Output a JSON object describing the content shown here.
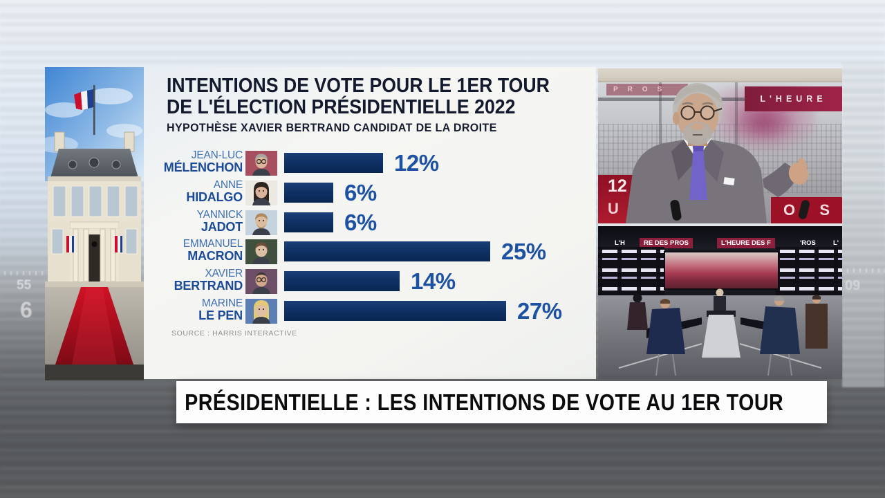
{
  "banner": {
    "headline": "PRÉSIDENTIELLE : LES INTENTIONS DE VOTE AU 1ER TOUR"
  },
  "chart_data": {
    "type": "bar",
    "orientation": "horizontal",
    "title_line1": "INTENTIONS DE VOTE POUR LE 1ER TOUR",
    "title_line2": "DE L'ÉLECTION PRÉSIDENTIELLE 2022",
    "subtitle": "HYPOTHÈSE XAVIER BERTRAND CANDIDAT DE LA DROITE",
    "source": "SOURCE : HARRIS INTERACTIVE",
    "value_suffix": "%",
    "xlim": [
      0,
      30
    ],
    "grid": false,
    "legend": "none",
    "categories": [
      "JEAN-LUC MÉLENCHON",
      "ANNE HIDALGO",
      "YANNICK JADOT",
      "EMMANUEL MACRON",
      "XAVIER BERTRAND",
      "MARINE LE PEN"
    ],
    "values": [
      12,
      6,
      6,
      25,
      14,
      27
    ],
    "candidates": [
      {
        "first": "JEAN-LUC",
        "last": "MÉLENCHON",
        "value": 12,
        "photo": "portrait-melenchon"
      },
      {
        "first": "ANNE",
        "last": "HIDALGO",
        "value": 6,
        "photo": "portrait-hidalgo"
      },
      {
        "first": "YANNICK",
        "last": "JADOT",
        "value": 6,
        "photo": "portrait-jadot"
      },
      {
        "first": "EMMANUEL",
        "last": "MACRON",
        "value": 25,
        "photo": "portrait-macron"
      },
      {
        "first": "XAVIER",
        "last": "BERTRAND",
        "value": 14,
        "photo": "portrait-bertrand"
      },
      {
        "first": "MARINE",
        "last": "LE PEN",
        "value": 27,
        "photo": "portrait-lepen"
      }
    ],
    "bar_color": "#0d2e5f",
    "value_label_color": "#1d51a1"
  },
  "video_top": {
    "brand": "L'HEURE",
    "hour_badge": "12",
    "letter_badge": "U",
    "partial_left": "PROS",
    "partial_right_1": "O",
    "partial_right_2": "S"
  },
  "video_bottom": {
    "wall_banners": [
      "L'H",
      "RE DES PROS",
      "L'HEURE DES F",
      "'ROS",
      "L'"
    ]
  },
  "background": {
    "left_number_top": "55",
    "left_number_bottom": "6",
    "right_number": "09"
  }
}
